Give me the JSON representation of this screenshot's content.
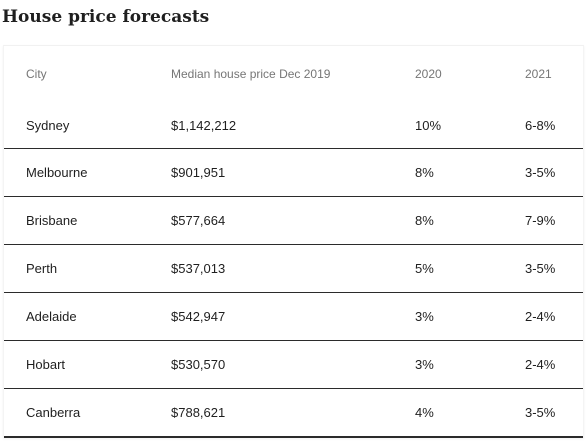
{
  "title": "House price forecasts",
  "chart_data": {
    "type": "table",
    "columns": [
      "City",
      "Median house price Dec 2019",
      "2020",
      "2021"
    ],
    "rows": [
      {
        "city": "Sydney",
        "median_price": "$1,142,212",
        "y2020": "10%",
        "y2021": "6-8%"
      },
      {
        "city": "Melbourne",
        "median_price": "$901,951",
        "y2020": "8%",
        "y2021": "3-5%"
      },
      {
        "city": "Brisbane",
        "median_price": "$577,664",
        "y2020": "8%",
        "y2021": "7-9%"
      },
      {
        "city": "Perth",
        "median_price": "$537,013",
        "y2020": "5%",
        "y2021": "3-5%"
      },
      {
        "city": "Adelaide",
        "median_price": "$542,947",
        "y2020": "3%",
        "y2021": "2-4%"
      },
      {
        "city": "Hobart",
        "median_price": "$530,570",
        "y2020": "3%",
        "y2021": "2-4%"
      },
      {
        "city": "Canberra",
        "median_price": "$788,621",
        "y2020": "4%",
        "y2021": "3-5%"
      }
    ]
  }
}
